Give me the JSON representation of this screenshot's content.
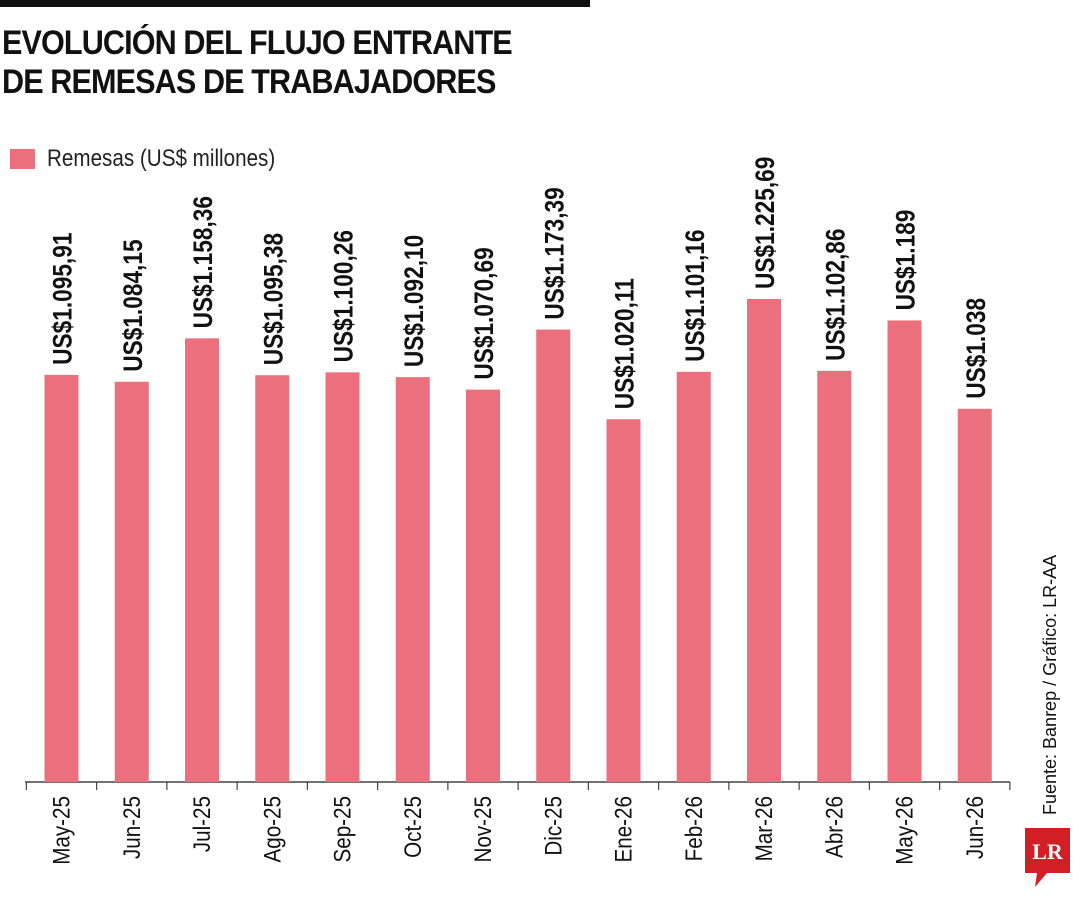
{
  "title_lines": [
    "EVOLUCIÓN DEL FLUJO ENTRANTE",
    "DE REMESAS DE TRABAJADORES"
  ],
  "source": "Fuente: Banrep / Gráfico: LR-AA",
  "logo_text": "LR",
  "colors": {
    "bar": "#ec6f7d",
    "axis": "#444444",
    "text": "#111111",
    "logo": "#d21f26"
  },
  "chart_data": {
    "type": "bar",
    "title": "EVOLUCIÓN DEL FLUJO ENTRANTE DE REMESAS DE TRABAJADORES",
    "categories": [
      "May-25",
      "Jun-25",
      "Jul-25",
      "Ago-25",
      "Sep-25",
      "Oct-25",
      "Nov-25",
      "Dic-25",
      "Ene-26",
      "Feb-26",
      "Mar-26",
      "Abr-26",
      "May-26",
      "Jun-26"
    ],
    "series": [
      {
        "name": "Remesas (US$ millones)",
        "values": [
          1095.91,
          1084.15,
          1158.36,
          1095.38,
          1100.26,
          1092.1,
          1070.69,
          1173.39,
          1020.11,
          1101.16,
          1225.69,
          1102.86,
          1189,
          1038
        ]
      }
    ],
    "data_labels": [
      "US$1.095,91",
      "US$1.084,15",
      "US$1.158,36",
      "US$1.095,38",
      "US$1.100,26",
      "US$1.092,10",
      "US$1.070,69",
      "US$1.173,39",
      "US$1.020,11",
      "US$1.101,16",
      "US$1.225,69",
      "US$1.102,86",
      "US$1.189",
      "US$1.038"
    ],
    "legend": "top-left",
    "grid": false,
    "ylim": [
      400,
      1300
    ]
  }
}
